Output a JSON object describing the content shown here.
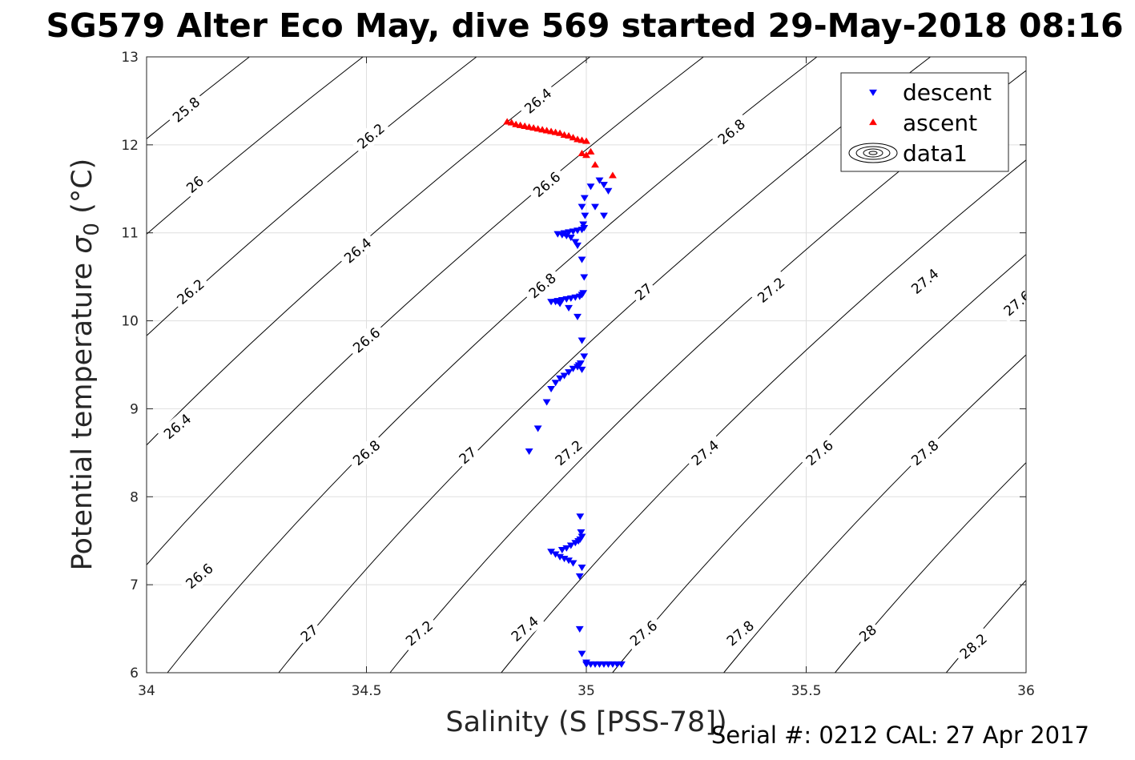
{
  "chart_data": {
    "type": "scatter",
    "title": "SG579 Alter Eco May, dive 569 started 29-May-2018 08:16",
    "xlabel": "Salinity (S [PSS-78])",
    "ylabel_main": "Potential temperature ",
    "ylabel_sym": "σ",
    "ylabel_sub": "0",
    "ylabel_unit": " (°C)",
    "footer": "Serial #: 0212  CAL: 27 Apr 2017",
    "xlim": [
      34,
      36
    ],
    "ylim": [
      6,
      13
    ],
    "xticks": [
      34,
      34.5,
      35,
      35.5,
      36
    ],
    "xtick_labels": [
      "34",
      "34.5",
      "35",
      "35.5",
      "36"
    ],
    "yticks": [
      6,
      7,
      8,
      9,
      10,
      11,
      12,
      13
    ],
    "ytick_labels": [
      "6",
      "7",
      "8",
      "9",
      "10",
      "11",
      "12",
      "13"
    ],
    "grid": true,
    "legend_position": "top-right",
    "legend": [
      {
        "label": "descent",
        "marker": "triangle-down",
        "color": "#0000ff"
      },
      {
        "label": "ascent",
        "marker": "triangle-up",
        "color": "#ff0000"
      },
      {
        "label": "data1",
        "marker": "contour",
        "color": "#000000"
      }
    ],
    "contours": {
      "levels": [
        25.8,
        26,
        26.2,
        26.4,
        26.6,
        26.8,
        27,
        27.2,
        27.4,
        27.6,
        27.8,
        28,
        28.2
      ],
      "labels": [
        {
          "text": "25.8",
          "s": 34.09,
          "t": 12.4
        },
        {
          "text": "26",
          "s": 34.11,
          "t": 11.55
        },
        {
          "text": "26.2",
          "s": 34.1,
          "t": 10.33
        },
        {
          "text": "26.4",
          "s": 34.07,
          "t": 8.8
        },
        {
          "text": "26.6",
          "s": 34.12,
          "t": 7.1
        },
        {
          "text": "26.8",
          "s": 34.13,
          "t": 5.67
        },
        {
          "text": "26.2",
          "s": 34.51,
          "t": 12.1
        },
        {
          "text": "26.4",
          "s": 34.48,
          "t": 10.8
        },
        {
          "text": "26.6",
          "s": 34.5,
          "t": 9.78
        },
        {
          "text": "26.8",
          "s": 34.5,
          "t": 8.5
        },
        {
          "text": "27",
          "s": 34.37,
          "t": 6.45
        },
        {
          "text": "26.4",
          "s": 34.89,
          "t": 12.5
        },
        {
          "text": "26.6",
          "s": 34.91,
          "t": 11.55
        },
        {
          "text": "26.8",
          "s": 34.9,
          "t": 10.4
        },
        {
          "text": "27",
          "s": 34.73,
          "t": 8.47
        },
        {
          "text": "27.2",
          "s": 34.62,
          "t": 6.45
        },
        {
          "text": "27.2",
          "s": 34.96,
          "t": 8.5
        },
        {
          "text": "27",
          "s": 35.13,
          "t": 10.33
        },
        {
          "text": "27.4",
          "s": 34.86,
          "t": 6.5
        },
        {
          "text": "27.6",
          "s": 35.13,
          "t": 6.45
        },
        {
          "text": "26.8",
          "s": 35.33,
          "t": 12.15
        },
        {
          "text": "27.2",
          "s": 35.42,
          "t": 10.35
        },
        {
          "text": "27.4",
          "s": 35.27,
          "t": 8.5
        },
        {
          "text": "27.6",
          "s": 35.53,
          "t": 8.5
        },
        {
          "text": "27.8",
          "s": 35.35,
          "t": 6.45
        },
        {
          "text": "27",
          "s": 35.61,
          "t": 12.1
        },
        {
          "text": "27.4",
          "s": 35.77,
          "t": 10.45
        },
        {
          "text": "27.6",
          "s": 35.98,
          "t": 10.2
        },
        {
          "text": "27.8",
          "s": 35.77,
          "t": 8.5
        },
        {
          "text": "28",
          "s": 35.64,
          "t": 6.45
        },
        {
          "text": "28.2",
          "s": 35.88,
          "t": 6.3
        }
      ]
    },
    "series": [
      {
        "name": "descent",
        "marker": "triangle-down",
        "color": "#0000ff",
        "x": [
          34.87,
          34.89,
          34.91,
          34.92,
          34.93,
          34.94,
          34.95,
          34.96,
          34.97,
          34.98,
          34.983,
          34.987,
          34.99,
          34.995,
          34.99,
          34.98,
          34.96,
          34.94,
          34.93,
          34.92,
          34.935,
          34.945,
          34.955,
          34.965,
          34.975,
          34.985,
          34.99,
          34.993,
          34.995,
          34.99,
          34.98,
          34.975,
          34.965,
          34.955,
          34.945,
          34.935,
          34.95,
          34.96,
          34.97,
          34.98,
          34.99,
          34.995,
          34.993,
          34.997,
          34.99,
          34.996,
          35.01,
          35.03,
          35.04,
          35.02,
          35.05,
          35.04,
          34.985,
          34.99,
          34.97,
          34.96,
          34.95,
          34.94,
          34.93,
          34.92,
          34.945,
          34.955,
          34.965,
          34.975,
          34.982,
          34.986,
          34.99,
          34.988,
          34.986,
          34.985,
          34.99,
          35.0,
          35.0,
          35.01,
          35.02,
          35.03,
          35.04,
          35.05,
          35.06,
          35.07,
          35.08
        ],
        "y": [
          8.52,
          8.78,
          9.08,
          9.23,
          9.3,
          9.35,
          9.38,
          9.42,
          9.46,
          9.48,
          9.5,
          9.52,
          9.45,
          9.6,
          9.78,
          10.05,
          10.15,
          10.2,
          10.22,
          10.22,
          10.23,
          10.24,
          10.25,
          10.26,
          10.27,
          10.28,
          10.3,
          10.32,
          10.5,
          10.7,
          10.86,
          10.9,
          10.95,
          10.97,
          10.98,
          10.99,
          11.0,
          11.01,
          11.02,
          11.03,
          11.04,
          11.06,
          11.1,
          11.2,
          11.3,
          11.4,
          11.53,
          11.6,
          11.2,
          11.3,
          11.48,
          11.55,
          7.1,
          7.2,
          7.25,
          7.28,
          7.3,
          7.32,
          7.35,
          7.38,
          7.4,
          7.42,
          7.45,
          7.48,
          7.5,
          7.52,
          7.55,
          7.6,
          7.78,
          6.5,
          6.22,
          6.12,
          6.1,
          6.1,
          6.1,
          6.1,
          6.1,
          6.1,
          6.1,
          6.1,
          6.1
        ]
      },
      {
        "name": "ascent",
        "marker": "triangle-up",
        "color": "#ff0000",
        "x": [
          34.82,
          34.83,
          34.84,
          34.85,
          34.86,
          34.87,
          34.88,
          34.89,
          34.9,
          34.91,
          34.92,
          34.93,
          34.94,
          34.95,
          34.96,
          34.97,
          34.98,
          34.99,
          35.0,
          34.99,
          35.0,
          35.01,
          35.02,
          35.06
        ],
        "y": [
          12.26,
          12.25,
          12.23,
          12.22,
          12.21,
          12.2,
          12.19,
          12.18,
          12.17,
          12.16,
          12.15,
          12.14,
          12.13,
          12.11,
          12.1,
          12.08,
          12.06,
          12.05,
          12.04,
          11.9,
          11.88,
          11.92,
          11.77,
          11.65
        ]
      }
    ]
  }
}
